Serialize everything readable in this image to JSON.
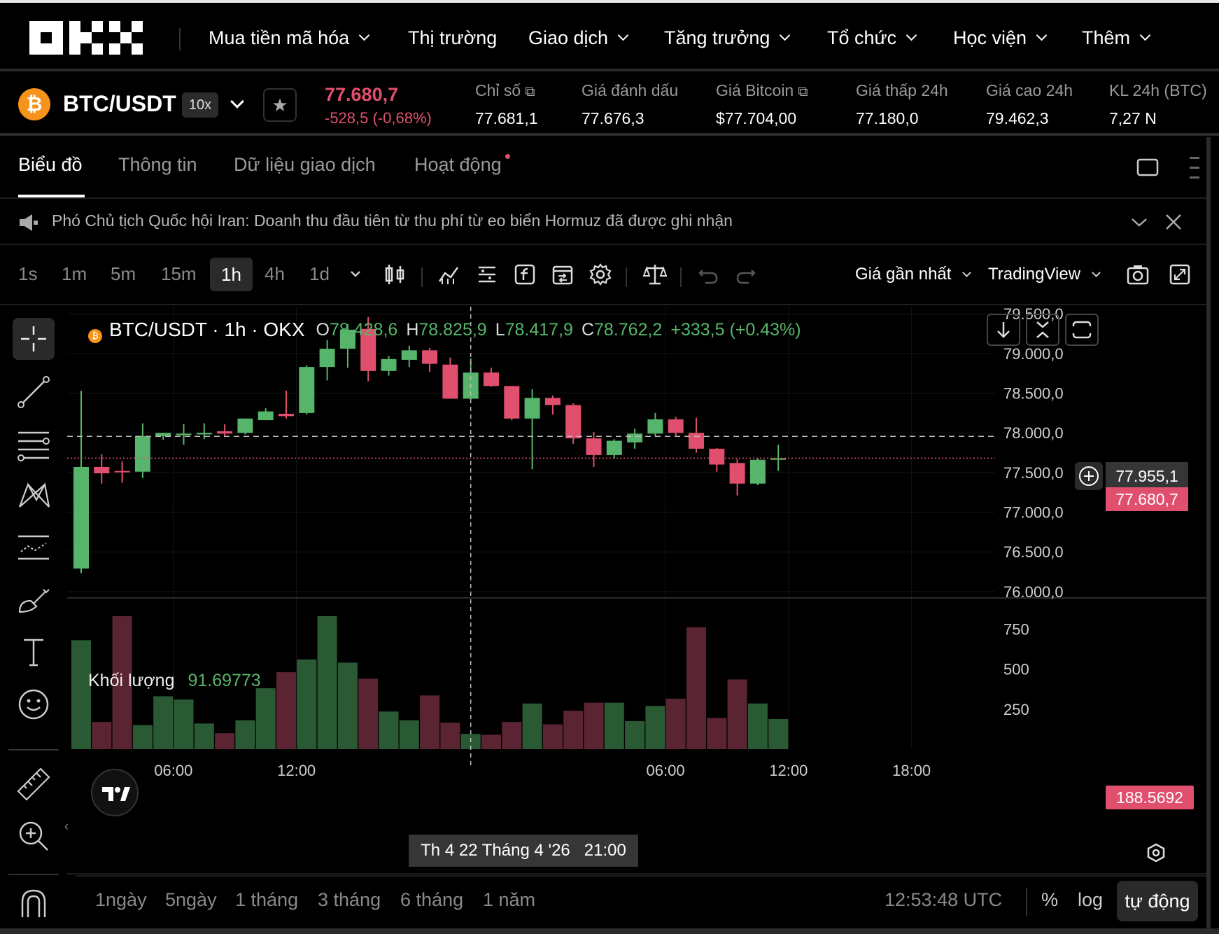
{
  "nav": {
    "items": [
      "Mua tiền mã hóa",
      "Thị trường",
      "Giao dịch",
      "Tăng trưởng",
      "Tổ chức",
      "Học viện",
      "Thêm"
    ]
  },
  "ticker": {
    "pair": "BTC/USDT",
    "leverage": "10x",
    "last_price": "77.680,7",
    "change": "-528,5 (-0,68%)",
    "stats": [
      {
        "label": "Chỉ số",
        "value": "77.681,1"
      },
      {
        "label": "Giá đánh dấu",
        "value": "77.676,3"
      },
      {
        "label": "Giá Bitcoin",
        "value": "$77.704,00"
      },
      {
        "label": "Giá thấp 24h",
        "value": "77.180,0"
      },
      {
        "label": "Giá cao 24h",
        "value": "79.462,3"
      },
      {
        "label": "KL 24h (BTC)",
        "value": "7,27 N"
      }
    ]
  },
  "tabs": [
    "Biểu đồ",
    "Thông tin",
    "Dữ liệu giao dịch",
    "Hoạt động"
  ],
  "news": {
    "text": "Phó Chủ tịch Quốc hội Iran: Doanh thu đầu tiên từ thu phí từ eo biển Hormuz đã được ghi nhận"
  },
  "toolbar": {
    "timeframes": [
      "1s",
      "1m",
      "5m",
      "15m",
      "1h",
      "4h",
      "1d"
    ],
    "selected": "1h",
    "price_source": "Giá gần nhất",
    "chart_type": "TradingView"
  },
  "legend": {
    "symbol": "BTC/USDT · 1h · OKX",
    "o_label": "O",
    "o": "78.428,6",
    "h_label": "H",
    "h": "78.825,9",
    "l_label": "L",
    "l": "78.417,9",
    "c_label": "C",
    "c": "78.762,2",
    "change": "+333,5 (+0.43%)"
  },
  "volume_legend": {
    "label": "Khối lượng",
    "value": "91.69773"
  },
  "crosshair": {
    "price": "77.955,1",
    "time": "Th 4 22 Tháng 4 '26   21:00"
  },
  "last_price_tag": "77.680,7",
  "volume_tag": "188.5692",
  "bottom": {
    "ranges": [
      "1ngày",
      "5ngày",
      "1 tháng",
      "3 tháng",
      "6 tháng",
      "1 năm"
    ],
    "clock": "12:53:48 UTC",
    "percent": "%",
    "log": "log",
    "auto": "tự động"
  },
  "colors": {
    "up": "#56b56a",
    "down": "#e0506e",
    "up_vol": "#2a5a34",
    "down_vol": "#5a2432"
  },
  "chart_data": {
    "type": "candlestick",
    "title": "BTC/USDT · 1h · OKX",
    "y_ticks": [
      79500,
      79000,
      78500,
      78000,
      77500,
      77000,
      76500,
      76000
    ],
    "y_tick_labels": [
      "79.500,0",
      "79.000,0",
      "78.500,0",
      "78.000,0",
      "77.500,0",
      "77.000,0",
      "76.500,0",
      "76.000,0"
    ],
    "ylim": [
      75990,
      79590
    ],
    "x_tick_labels": [
      "06:00",
      "12:00",
      "06:00",
      "12:00",
      "18:00"
    ],
    "x_tick_index": [
      4.5,
      10.5,
      28.5,
      34.5,
      40.5
    ],
    "candles": [
      {
        "o": 76290,
        "h": 78530,
        "l": 76230,
        "c": 77570
      },
      {
        "o": 77570,
        "h": 77730,
        "l": 77360,
        "c": 77490
      },
      {
        "o": 77520,
        "h": 77640,
        "l": 77370,
        "c": 77510
      },
      {
        "o": 77510,
        "h": 78120,
        "l": 77430,
        "c": 77960
      },
      {
        "o": 77960,
        "h": 78000,
        "l": 77910,
        "c": 78000
      },
      {
        "o": 77970,
        "h": 78110,
        "l": 77850,
        "c": 77990
      },
      {
        "o": 77980,
        "h": 78120,
        "l": 77920,
        "c": 78000
      },
      {
        "o": 78020,
        "h": 78110,
        "l": 77950,
        "c": 77990
      },
      {
        "o": 78000,
        "h": 78180,
        "l": 77980,
        "c": 78180
      },
      {
        "o": 78160,
        "h": 78310,
        "l": 78160,
        "c": 78270
      },
      {
        "o": 78240,
        "h": 78530,
        "l": 78180,
        "c": 78210
      },
      {
        "o": 78250,
        "h": 78850,
        "l": 78230,
        "c": 78830
      },
      {
        "o": 78830,
        "h": 79170,
        "l": 78660,
        "c": 79060
      },
      {
        "o": 79060,
        "h": 79370,
        "l": 78820,
        "c": 79300
      },
      {
        "o": 79310,
        "h": 79460,
        "l": 78650,
        "c": 78780
      },
      {
        "o": 78780,
        "h": 78970,
        "l": 78720,
        "c": 78930
      },
      {
        "o": 78920,
        "h": 79100,
        "l": 78830,
        "c": 79040
      },
      {
        "o": 79040,
        "h": 79070,
        "l": 78770,
        "c": 78870
      },
      {
        "o": 78860,
        "h": 78950,
        "l": 78430,
        "c": 78430
      },
      {
        "o": 78430,
        "h": 78940,
        "l": 78420,
        "c": 78760
      },
      {
        "o": 78760,
        "h": 78820,
        "l": 78580,
        "c": 78590
      },
      {
        "o": 78590,
        "h": 78590,
        "l": 78160,
        "c": 78180
      },
      {
        "o": 78180,
        "h": 78550,
        "l": 77540,
        "c": 78440
      },
      {
        "o": 78440,
        "h": 78470,
        "l": 78230,
        "c": 78350
      },
      {
        "o": 78350,
        "h": 78370,
        "l": 77860,
        "c": 77930
      },
      {
        "o": 77930,
        "h": 78010,
        "l": 77570,
        "c": 77720
      },
      {
        "o": 77720,
        "h": 77920,
        "l": 77680,
        "c": 77900
      },
      {
        "o": 77880,
        "h": 78050,
        "l": 77800,
        "c": 77990
      },
      {
        "o": 77990,
        "h": 78250,
        "l": 77960,
        "c": 78170
      },
      {
        "o": 78170,
        "h": 78200,
        "l": 77960,
        "c": 78000
      },
      {
        "o": 78000,
        "h": 78190,
        "l": 77750,
        "c": 77800
      },
      {
        "o": 77800,
        "h": 77810,
        "l": 77510,
        "c": 77600
      },
      {
        "o": 77620,
        "h": 77670,
        "l": 77210,
        "c": 77360
      },
      {
        "o": 77360,
        "h": 77680,
        "l": 77340,
        "c": 77660
      },
      {
        "o": 77660,
        "h": 77850,
        "l": 77520,
        "c": 77680
      }
    ],
    "volume_axis": [
      750,
      500,
      250
    ],
    "volume_max": 900,
    "volumes": [
      680,
      170,
      830,
      150,
      330,
      310,
      160,
      100,
      180,
      380,
      480,
      560,
      830,
      540,
      440,
      235,
      180,
      335,
      165,
      95,
      90,
      170,
      285,
      155,
      240,
      290,
      290,
      175,
      270,
      315,
      760,
      195,
      435,
      285,
      188
    ]
  }
}
